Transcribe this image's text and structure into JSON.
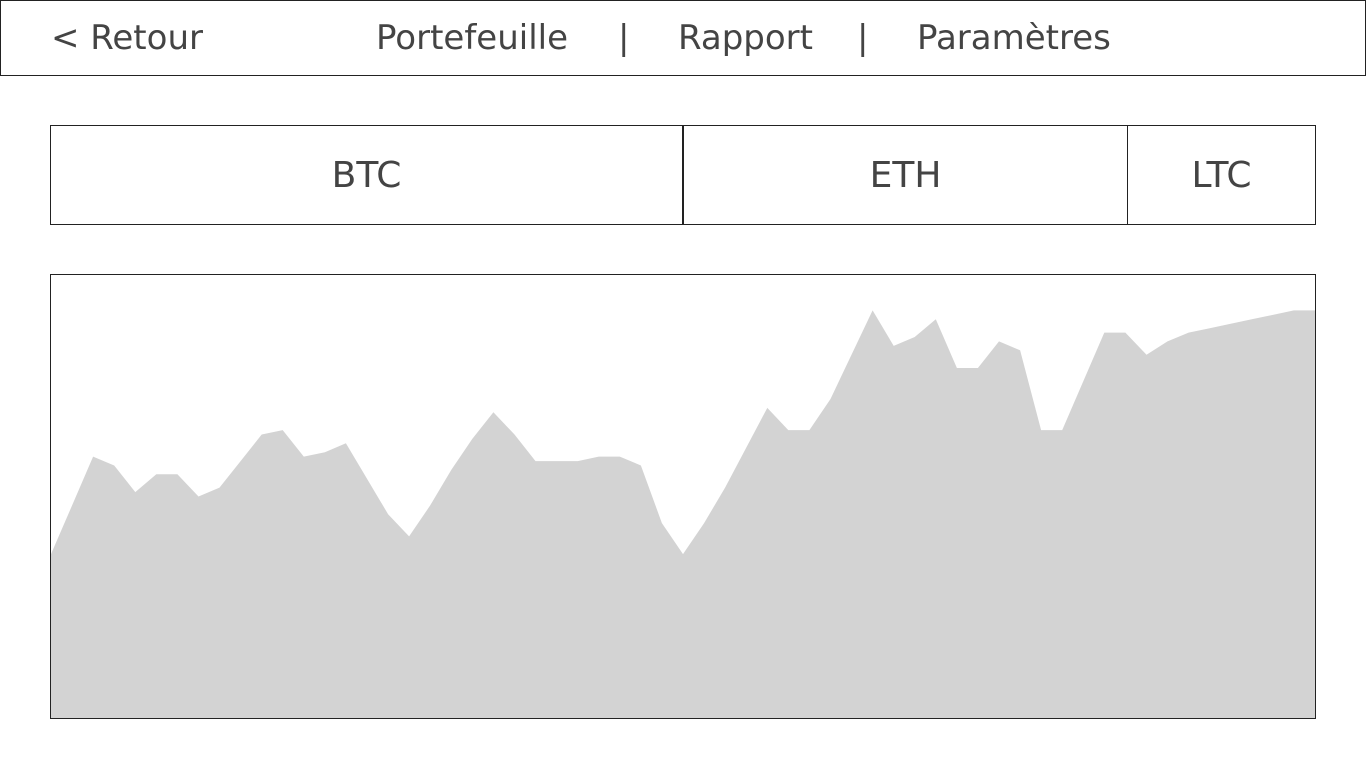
{
  "nav": {
    "back_label": "< Retour",
    "items": [
      "Portefeuille",
      "Rapport",
      "Paramètres"
    ],
    "separator": "|"
  },
  "tabs": [
    "BTC",
    "ETH",
    "LTC"
  ],
  "colors": {
    "border": "#222222",
    "text": "#444444",
    "area_fill": "#d3d3d3"
  },
  "chart_data": {
    "type": "area",
    "title": "",
    "xlabel": "",
    "ylabel": "",
    "ylim": [
      0,
      100
    ],
    "x": [
      0,
      1,
      2,
      3,
      4,
      5,
      6,
      7,
      8,
      9,
      10,
      11,
      12,
      13,
      14,
      15,
      16,
      17,
      18,
      19,
      20,
      21,
      22,
      23,
      24,
      25,
      26,
      27,
      28,
      29,
      30,
      31,
      32,
      33,
      34,
      35,
      36,
      37,
      38,
      39,
      40,
      41,
      42,
      43,
      44,
      45,
      46,
      47,
      48,
      49,
      50,
      51,
      52,
      53,
      54,
      55,
      56,
      57,
      58,
      59,
      60
    ],
    "series": [
      {
        "values": [
          37,
          48,
          59,
          57,
          51,
          55,
          55,
          50,
          52,
          58,
          64,
          65,
          59,
          60,
          62,
          54,
          46,
          41,
          48,
          56,
          63,
          69,
          64,
          58,
          58,
          58,
          59,
          59,
          57,
          44,
          37,
          44,
          52,
          61,
          70,
          65,
          65,
          72,
          82,
          92,
          84,
          86,
          90,
          79,
          79,
          85,
          83,
          65,
          65,
          76,
          87,
          87,
          82,
          85,
          87,
          88,
          89,
          90,
          91,
          92,
          92
        ]
      }
    ]
  }
}
